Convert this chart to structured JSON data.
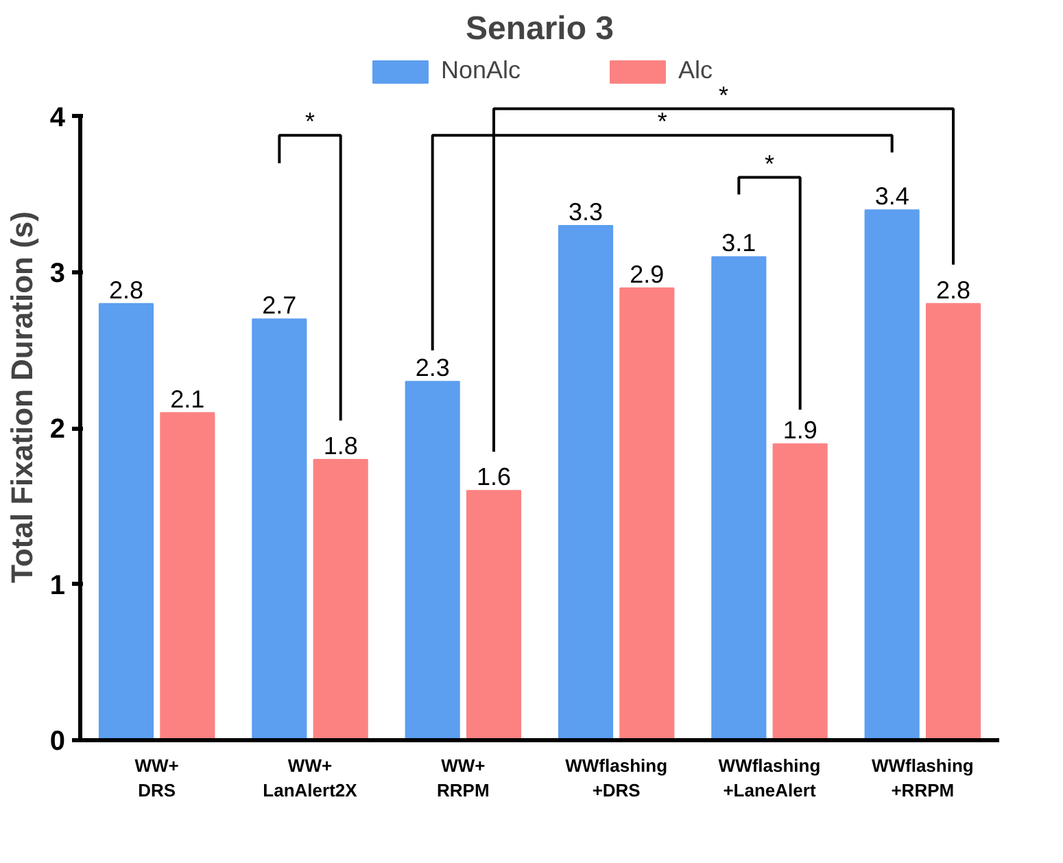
{
  "chart_data": {
    "type": "bar",
    "title": "Senario 3",
    "ylabel": "Total Fixation Duration (s)",
    "categories": [
      "WW+\nDRS",
      "WW+\nLanAlert2X",
      "WW+\nRRPM",
      "WWflashing\n+DRS",
      "WWflashing\n+LaneAlert",
      "WWflashing\n+RRPM"
    ],
    "series": [
      {
        "name": "NonAlc",
        "color": "#5c9ef0",
        "values": [
          2.8,
          2.7,
          2.3,
          3.3,
          3.1,
          3.4
        ]
      },
      {
        "name": "Alc",
        "color": "#fc8282",
        "values": [
          2.1,
          1.8,
          1.6,
          2.9,
          1.9,
          2.8
        ]
      }
    ],
    "ylim": [
      0,
      4
    ],
    "yticks": [
      0,
      1,
      2,
      3,
      4
    ],
    "data_labels": true,
    "legend": "top",
    "grid": false,
    "annotations": [
      "*",
      "*",
      "*",
      "*"
    ]
  }
}
